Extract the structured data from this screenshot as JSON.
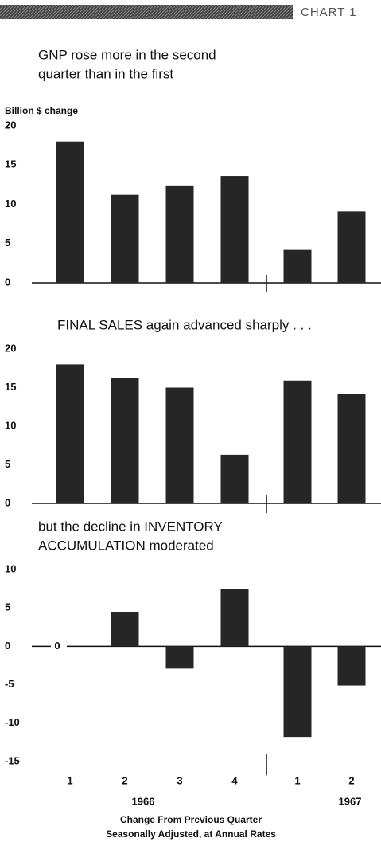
{
  "header": "CHART 1",
  "footnote": [
    "Change From Previous Quarter",
    "Seasonally Adjusted, at Annual Rates"
  ],
  "chart_data": [
    {
      "type": "bar",
      "title": [
        "GNP rose more in the second",
        "quarter than in the first"
      ],
      "ylabel": "Billion $ change",
      "values": [
        18.0,
        11.2,
        12.4,
        13.6,
        4.2,
        9.1
      ],
      "color": "#262626",
      "ylim": [
        0,
        20
      ],
      "yticks": [
        0,
        5,
        10,
        15,
        20
      ]
    },
    {
      "type": "bar",
      "title": [
        "FINAL SALES again advanced sharply . . ."
      ],
      "values": [
        18.0,
        16.2,
        15.0,
        6.3,
        15.9,
        14.2
      ],
      "color": "#262626",
      "ylim": [
        0,
        20
      ],
      "yticks": [
        0,
        5,
        10,
        15,
        20
      ]
    },
    {
      "type": "bar",
      "title": [
        "but the decline in INVENTORY",
        "ACCUMULATION moderated"
      ],
      "categories": [
        "1",
        "2",
        "3",
        "4",
        "1",
        "2"
      ],
      "year_labels": [
        "1966",
        "1967"
      ],
      "values": [
        0,
        4.5,
        -2.9,
        7.5,
        -11.8,
        -5.1
      ],
      "color": "#262626",
      "ylim": [
        -15,
        10
      ],
      "yticks": [
        -15,
        -10,
        -5,
        0,
        5,
        10
      ]
    }
  ]
}
